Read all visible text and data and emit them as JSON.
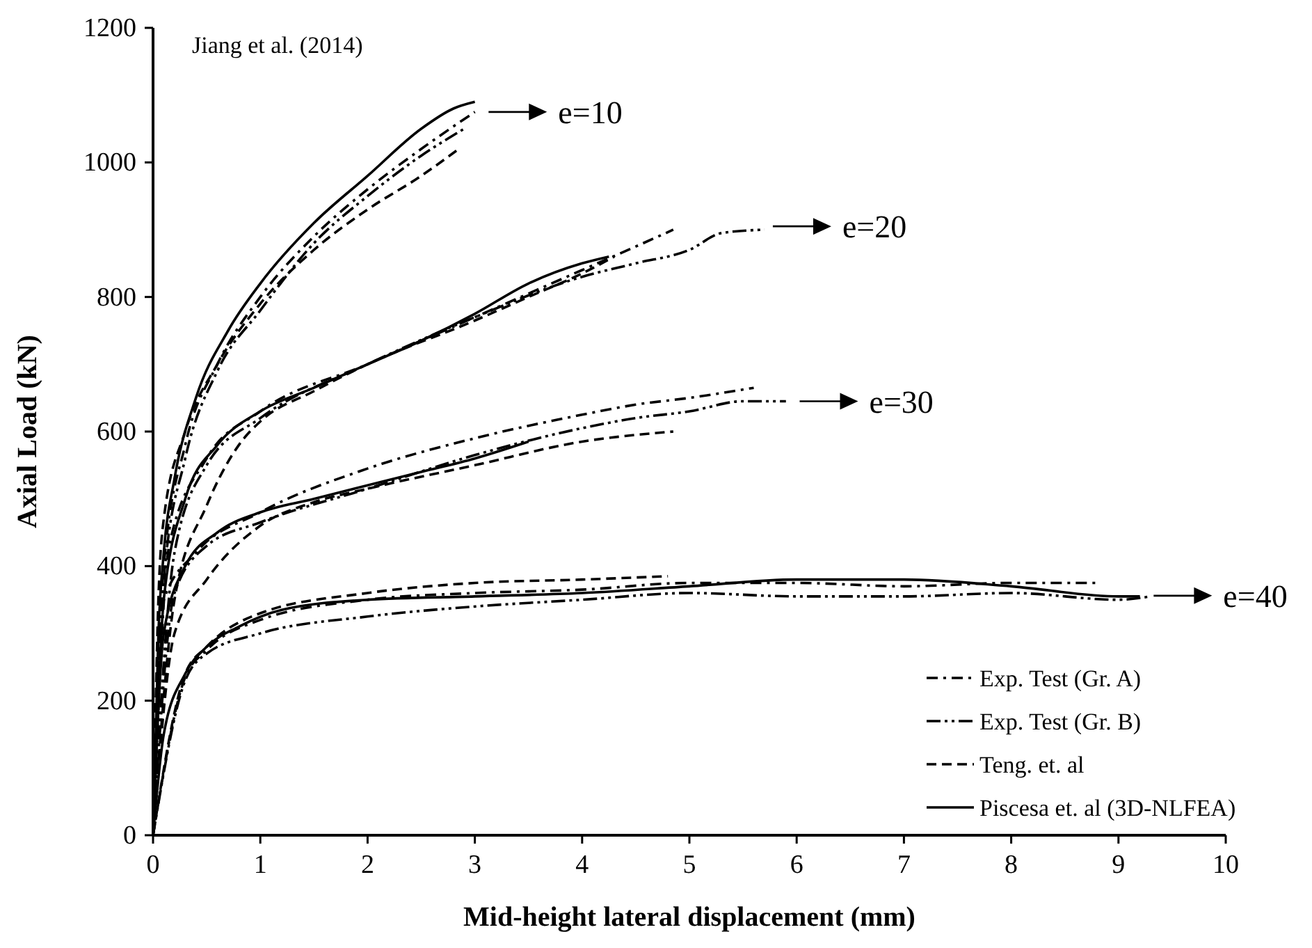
{
  "chart_data": {
    "type": "line",
    "xlabel": "Mid-height lateral displacement (mm)",
    "ylabel": "Axial Load (kN)",
    "xlim": [
      0,
      10
    ],
    "ylim": [
      0,
      1200
    ],
    "xticks": [
      0,
      1,
      2,
      3,
      4,
      5,
      6,
      7,
      8,
      9,
      10
    ],
    "yticks": [
      0,
      200,
      400,
      600,
      800,
      1000,
      1200
    ],
    "grid": false,
    "legend": "bottom right",
    "marker": "none",
    "annotations": [
      "Jiang et al. (2014)",
      {
        "text": "e=10",
        "x": 3.05,
        "y": 1075
      },
      {
        "text": "e=20",
        "x": 5.7,
        "y": 905
      },
      {
        "text": "e=30",
        "x": 5.95,
        "y": 645
      },
      {
        "text": "e=40",
        "x": 9.25,
        "y": 356
      }
    ],
    "series": [
      {
        "name": "Exp. Test (Gr. A)",
        "color": "#000000",
        "line_style": "dashdot",
        "x": [
          0,
          0.1,
          0.3,
          0.6,
          1,
          1.5,
          2,
          2.5,
          3
        ],
        "values": [
          0,
          400,
          580,
          700,
          800,
          890,
          960,
          1020,
          1075
        ]
      },
      {
        "name": "Exp. Test (Gr. B)",
        "color": "#000000",
        "line_style": "dashdotdot",
        "x": [
          0,
          0.1,
          0.3,
          0.6,
          1,
          1.5,
          2,
          2.5,
          2.9
        ],
        "values": [
          0,
          380,
          560,
          690,
          780,
          880,
          950,
          1010,
          1050
        ]
      },
      {
        "name": "Teng. et. al",
        "color": "#000000",
        "line_style": "dashed",
        "x": [
          0,
          0.05,
          0.1,
          0.3,
          0.6,
          1,
          1.5,
          2,
          2.5,
          2.85
        ],
        "values": [
          0,
          350,
          470,
          600,
          700,
          790,
          870,
          930,
          980,
          1020
        ]
      },
      {
        "name": "Piscesa et. al (3D-NLFEA)",
        "color": "#000000",
        "line_style": "solid",
        "x": [
          0,
          0.05,
          0.1,
          0.2,
          0.4,
          0.7,
          1,
          1.5,
          2,
          2.5,
          2.8,
          3
        ],
        "values": [
          0,
          300,
          420,
          530,
          650,
          750,
          820,
          910,
          980,
          1050,
          1080,
          1090
        ]
      },
      {
        "color": "#000000",
        "line_style": "dashdot",
        "x": [
          0,
          0.15,
          0.5,
          1,
          2,
          3,
          3.5,
          4,
          4.5,
          4.85
        ],
        "values": [
          0,
          430,
          560,
          630,
          700,
          770,
          805,
          840,
          875,
          900
        ]
      },
      {
        "color": "#000000",
        "line_style": "dashdotdot",
        "x": [
          0,
          0.2,
          0.5,
          1,
          2,
          3,
          4,
          4.5,
          5,
          5.3,
          5.7
        ],
        "values": [
          0,
          420,
          550,
          620,
          700,
          770,
          830,
          850,
          870,
          895,
          900
        ]
      },
      {
        "color": "#000000",
        "line_style": "dashed",
        "x": [
          0,
          0.2,
          0.5,
          0.8,
          1,
          1.5,
          2,
          3,
          3.5,
          4,
          4.3
        ],
        "values": [
          0,
          350,
          490,
          580,
          615,
          660,
          700,
          765,
          800,
          835,
          860
        ]
      },
      {
        "color": "#000000",
        "line_style": "solid",
        "x": [
          0,
          0.1,
          0.3,
          0.6,
          1,
          1.5,
          2,
          2.5,
          3,
          3.5,
          4,
          4.25
        ],
        "values": [
          0,
          350,
          500,
          580,
          630,
          665,
          700,
          735,
          775,
          820,
          850,
          860
        ]
      },
      {
        "color": "#000000",
        "line_style": "dashdot",
        "x": [
          0,
          0.1,
          0.4,
          1,
          2,
          3,
          4,
          4.5,
          5,
          5.6
        ],
        "values": [
          0,
          350,
          420,
          480,
          545,
          590,
          625,
          640,
          650,
          665
        ]
      },
      {
        "color": "#000000",
        "line_style": "dashdotdot",
        "x": [
          0,
          0.2,
          0.5,
          1,
          2,
          3,
          4,
          4.5,
          5,
          5.5,
          5.9
        ],
        "values": [
          0,
          360,
          430,
          465,
          515,
          565,
          605,
          620,
          630,
          645,
          645
        ]
      },
      {
        "color": "#000000",
        "line_style": "dashed",
        "x": [
          0,
          0.2,
          0.5,
          1,
          1.5,
          2,
          3,
          4,
          4.85
        ],
        "values": [
          0,
          300,
          380,
          460,
          495,
          515,
          550,
          585,
          600
        ]
      },
      {
        "color": "#000000",
        "line_style": "solid",
        "x": [
          0,
          0.1,
          0.3,
          0.6,
          1,
          1.5,
          2,
          2.5,
          3,
          3.5
        ],
        "values": [
          0,
          300,
          400,
          450,
          480,
          500,
          520,
          540,
          560,
          585
        ]
      },
      {
        "color": "#000000",
        "line_style": "dashdot",
        "x": [
          0,
          0.3,
          0.5,
          1,
          2,
          3,
          4,
          5,
          6,
          7,
          8,
          8.8
        ],
        "values": [
          0,
          235,
          275,
          320,
          350,
          360,
          365,
          375,
          375,
          370,
          375,
          375
        ]
      },
      {
        "color": "#000000",
        "line_style": "dashdotdot",
        "x": [
          0,
          0.3,
          0.5,
          1,
          2,
          3,
          4,
          5,
          6,
          7,
          8,
          9,
          9.3
        ],
        "values": [
          0,
          230,
          270,
          300,
          325,
          340,
          350,
          360,
          355,
          355,
          360,
          350,
          355
        ]
      },
      {
        "color": "#000000",
        "line_style": "dashed",
        "x": [
          0,
          0.3,
          0.5,
          1,
          2,
          3,
          4,
          4.8
        ],
        "values": [
          0,
          240,
          280,
          330,
          360,
          375,
          380,
          385
        ]
      },
      {
        "color": "#000000",
        "line_style": "solid",
        "x": [
          0,
          0.1,
          0.3,
          0.5,
          0.8,
          1.2,
          2,
          3,
          4,
          5,
          6,
          7,
          8,
          9,
          9.2
        ],
        "values": [
          0,
          150,
          240,
          280,
          310,
          335,
          350,
          355,
          360,
          370,
          380,
          380,
          370,
          355,
          355
        ]
      }
    ]
  }
}
